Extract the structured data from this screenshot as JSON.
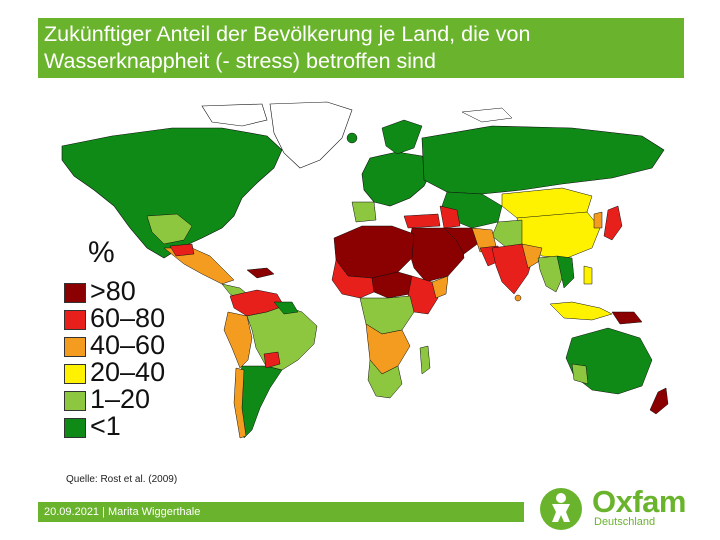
{
  "slide": {
    "title": "Zukünftiger Anteil der Bevölkerung je Land, die von Wasserknappheit (- stress) betroffen sind",
    "source": "Quelle: Rost et al. (2009)",
    "footer": "20.09.2021 | Marita Wiggerthale"
  },
  "legend": {
    "title": "%",
    "items": [
      {
        "label": ">80",
        "color": "#8b0000"
      },
      {
        "label": "60–80",
        "color": "#e8201c"
      },
      {
        "label": "40–60",
        "color": "#f39c1f"
      },
      {
        "label": "20–40",
        "color": "#fff200"
      },
      {
        "label": "1–20",
        "color": "#8dc63f"
      },
      {
        "label": "<1",
        "color": "#0f8a16"
      }
    ]
  },
  "logo": {
    "word": "Oxfam",
    "sub": "Deutschland"
  },
  "colors": {
    "brand_green": "#6ab42d",
    "land_low": "#0f8a16",
    "no_data": "#ffffff"
  }
}
